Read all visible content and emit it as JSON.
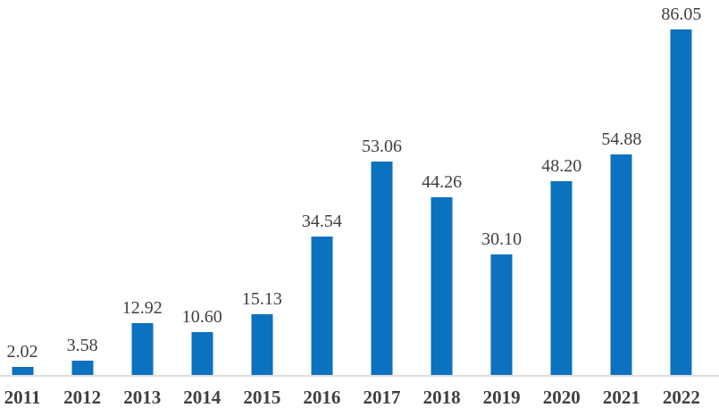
{
  "chart_data": {
    "type": "bar",
    "categories": [
      "2011",
      "2012",
      "2013",
      "2014",
      "2015",
      "2016",
      "2017",
      "2018",
      "2019",
      "2020",
      "2021",
      "2022"
    ],
    "values": [
      2.02,
      3.58,
      12.92,
      10.6,
      15.13,
      34.54,
      53.06,
      44.26,
      30.1,
      48.2,
      54.88,
      86.05
    ],
    "value_labels": [
      "2.02",
      "3.58",
      "12.92",
      "10.60",
      "15.13",
      "34.54",
      "53.06",
      "44.26",
      "30.10",
      "48.20",
      "54.88",
      "86.05"
    ],
    "title": "",
    "xlabel": "",
    "ylabel": "",
    "ylim": [
      0,
      93.3
    ],
    "grid": false,
    "legend": false,
    "data_labels_position": "above-bar",
    "bar_color": "#0c71be",
    "value_label_color": "#3f3f3f",
    "category_label_color": "#3f3f3f",
    "axis_line_color": "#dedede"
  }
}
